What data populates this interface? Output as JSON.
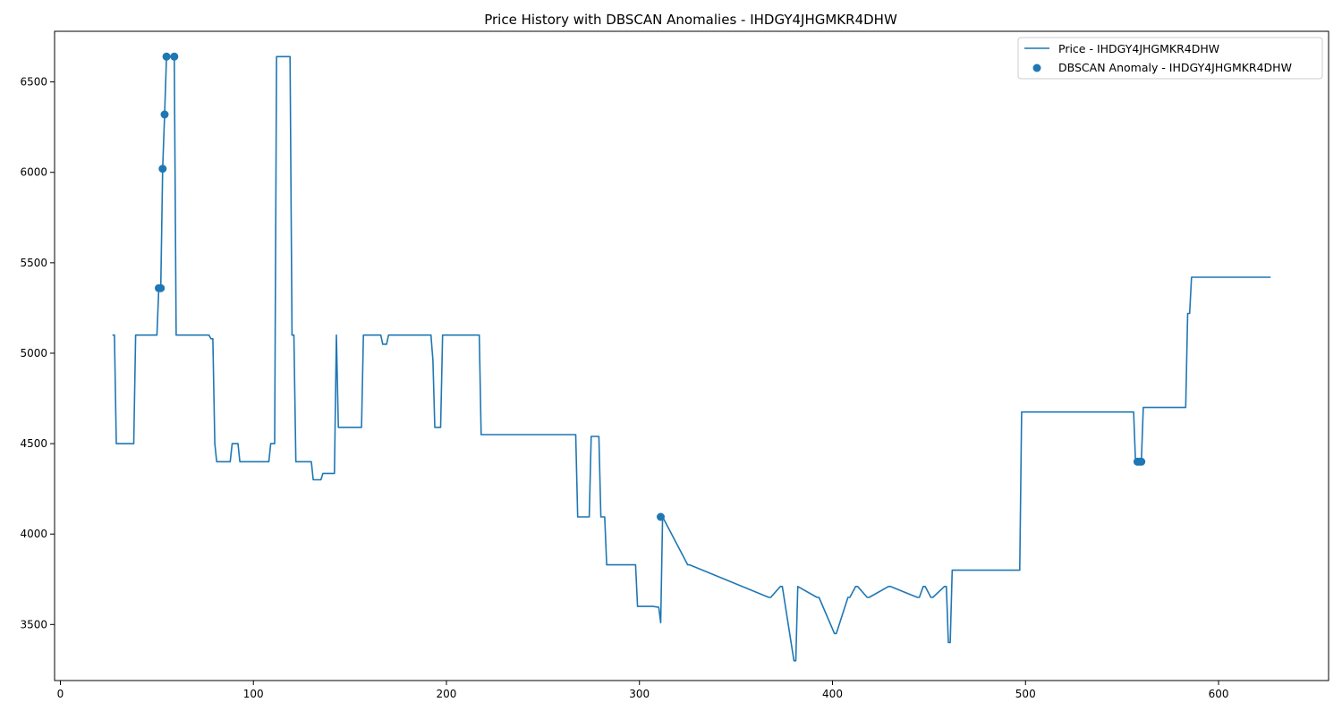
{
  "chart_data": {
    "type": "line",
    "title": "Price History with DBSCAN Anomalies - IHDGY4JHGMKR4DHW",
    "xlabel": "",
    "ylabel": "",
    "xlim": [
      -3,
      657
    ],
    "ylim": [
      3190,
      6780
    ],
    "xticks": [
      0,
      100,
      200,
      300,
      400,
      500,
      600
    ],
    "yticks": [
      3500,
      4000,
      4500,
      5000,
      5500,
      6000,
      6500
    ],
    "grid": false,
    "legend": {
      "position": "upper-right",
      "entries": [
        "Price - IHDGY4JHGMKR4DHW",
        "DBSCAN Anomaly - IHDGY4JHGMKR4DHW"
      ]
    },
    "colors": {
      "series": "#1f77b4"
    },
    "series": [
      {
        "name": "Price - IHDGY4JHGMKR4DHW",
        "kind": "line",
        "x": [
          27,
          28,
          29,
          38,
          39,
          40,
          50,
          51,
          52,
          53,
          54,
          55,
          59,
          60,
          61,
          77,
          78,
          79,
          80,
          81,
          88,
          89,
          92,
          93,
          108,
          109,
          111,
          112,
          119,
          120,
          121,
          122,
          123,
          130,
          131,
          135,
          136,
          138,
          142,
          143,
          144,
          156,
          157,
          166,
          167,
          169,
          170,
          185,
          186,
          192,
          193,
          194,
          197,
          198,
          216,
          217,
          218,
          267,
          268,
          274,
          275,
          279,
          280,
          282,
          283,
          298,
          299,
          307,
          310,
          311,
          312,
          325,
          326,
          367,
          368,
          373,
          374,
          380,
          381,
          382,
          392,
          393,
          401,
          402,
          408,
          409,
          412,
          413,
          418,
          419,
          429,
          430,
          444,
          445,
          447,
          448,
          451,
          452,
          458,
          459,
          460,
          461,
          462,
          497,
          498,
          556,
          557,
          559,
          560,
          561,
          583,
          584,
          585,
          586,
          627
        ],
        "y": [
          5100,
          5100,
          4500,
          4500,
          5100,
          5100,
          5100,
          5360,
          5360,
          6020,
          6320,
          6640,
          6640,
          5100,
          5100,
          5100,
          5080,
          5080,
          4500,
          4400,
          4400,
          4500,
          4500,
          4400,
          4400,
          4500,
          4500,
          6640,
          6640,
          5100,
          5100,
          4400,
          4400,
          4400,
          4300,
          4300,
          4335,
          4335,
          4335,
          5100,
          4590,
          4590,
          5100,
          5100,
          5050,
          5050,
          5100,
          5100,
          5100,
          5100,
          4960,
          4590,
          4590,
          5100,
          5100,
          5100,
          4550,
          4550,
          4095,
          4095,
          4540,
          4540,
          4095,
          4095,
          3830,
          3830,
          3600,
          3600,
          3595,
          3510,
          4095,
          3830,
          3830,
          3650,
          3650,
          3710,
          3710,
          3300,
          3300,
          3710,
          3650,
          3650,
          3450,
          3450,
          3650,
          3650,
          3710,
          3710,
          3650,
          3650,
          3710,
          3710,
          3650,
          3650,
          3710,
          3710,
          3650,
          3650,
          3710,
          3710,
          3400,
          3400,
          3800,
          3800,
          4675,
          4675,
          4400,
          4400,
          4400,
          4700,
          4700,
          5220,
          5220,
          5420,
          5420
        ]
      },
      {
        "name": "DBSCAN Anomaly - IHDGY4JHGMKR4DHW",
        "kind": "scatter",
        "x": [
          51,
          52,
          53,
          54,
          55,
          59,
          311,
          558,
          559,
          560
        ],
        "y": [
          5360,
          5360,
          6020,
          6320,
          6640,
          6640,
          4095,
          4400,
          4400,
          4400
        ]
      }
    ]
  }
}
